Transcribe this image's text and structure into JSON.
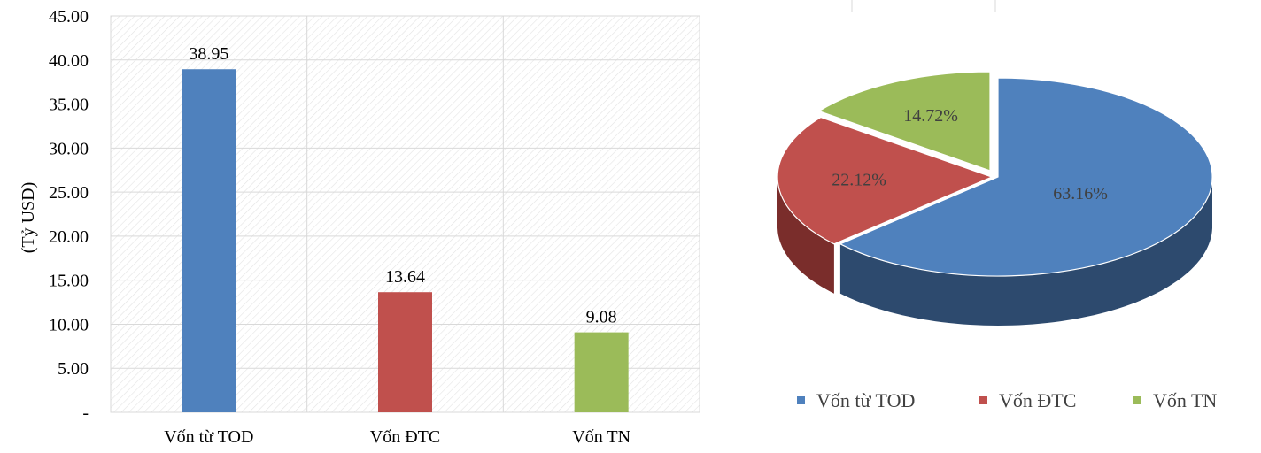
{
  "chart_data": [
    {
      "type": "bar",
      "title": "",
      "xlabel": "",
      "ylabel": "(Tỷ USD)",
      "ylim": [
        0,
        45
      ],
      "yticks": [
        0,
        5,
        10,
        15,
        20,
        25,
        30,
        35,
        40,
        45
      ],
      "ytick_labels": [
        "-",
        "5.00",
        "10.00",
        "15.00",
        "20.00",
        "25.00",
        "30.00",
        "35.00",
        "40.00",
        "45.00"
      ],
      "categories": [
        "Vốn từ TOD",
        "Vốn ĐTC",
        "Vốn TN"
      ],
      "values": [
        38.95,
        13.64,
        9.08
      ],
      "value_labels": [
        "38.95",
        "13.64",
        "9.08"
      ],
      "colors": [
        "#4f81bd",
        "#c0504d",
        "#9bbb59"
      ],
      "grid": true,
      "legend": false
    },
    {
      "type": "pie",
      "title": "",
      "style": "3d-exploded",
      "labels": [
        "Vốn từ TOD",
        "Vốn ĐTC",
        "Vốn TN"
      ],
      "values": [
        63.16,
        22.12,
        14.72
      ],
      "value_labels": [
        "63.16%",
        "22.12%",
        "14.72%"
      ],
      "colors": [
        "#4f81bd",
        "#c0504d",
        "#9bbb59"
      ],
      "legend": "bottom"
    }
  ]
}
